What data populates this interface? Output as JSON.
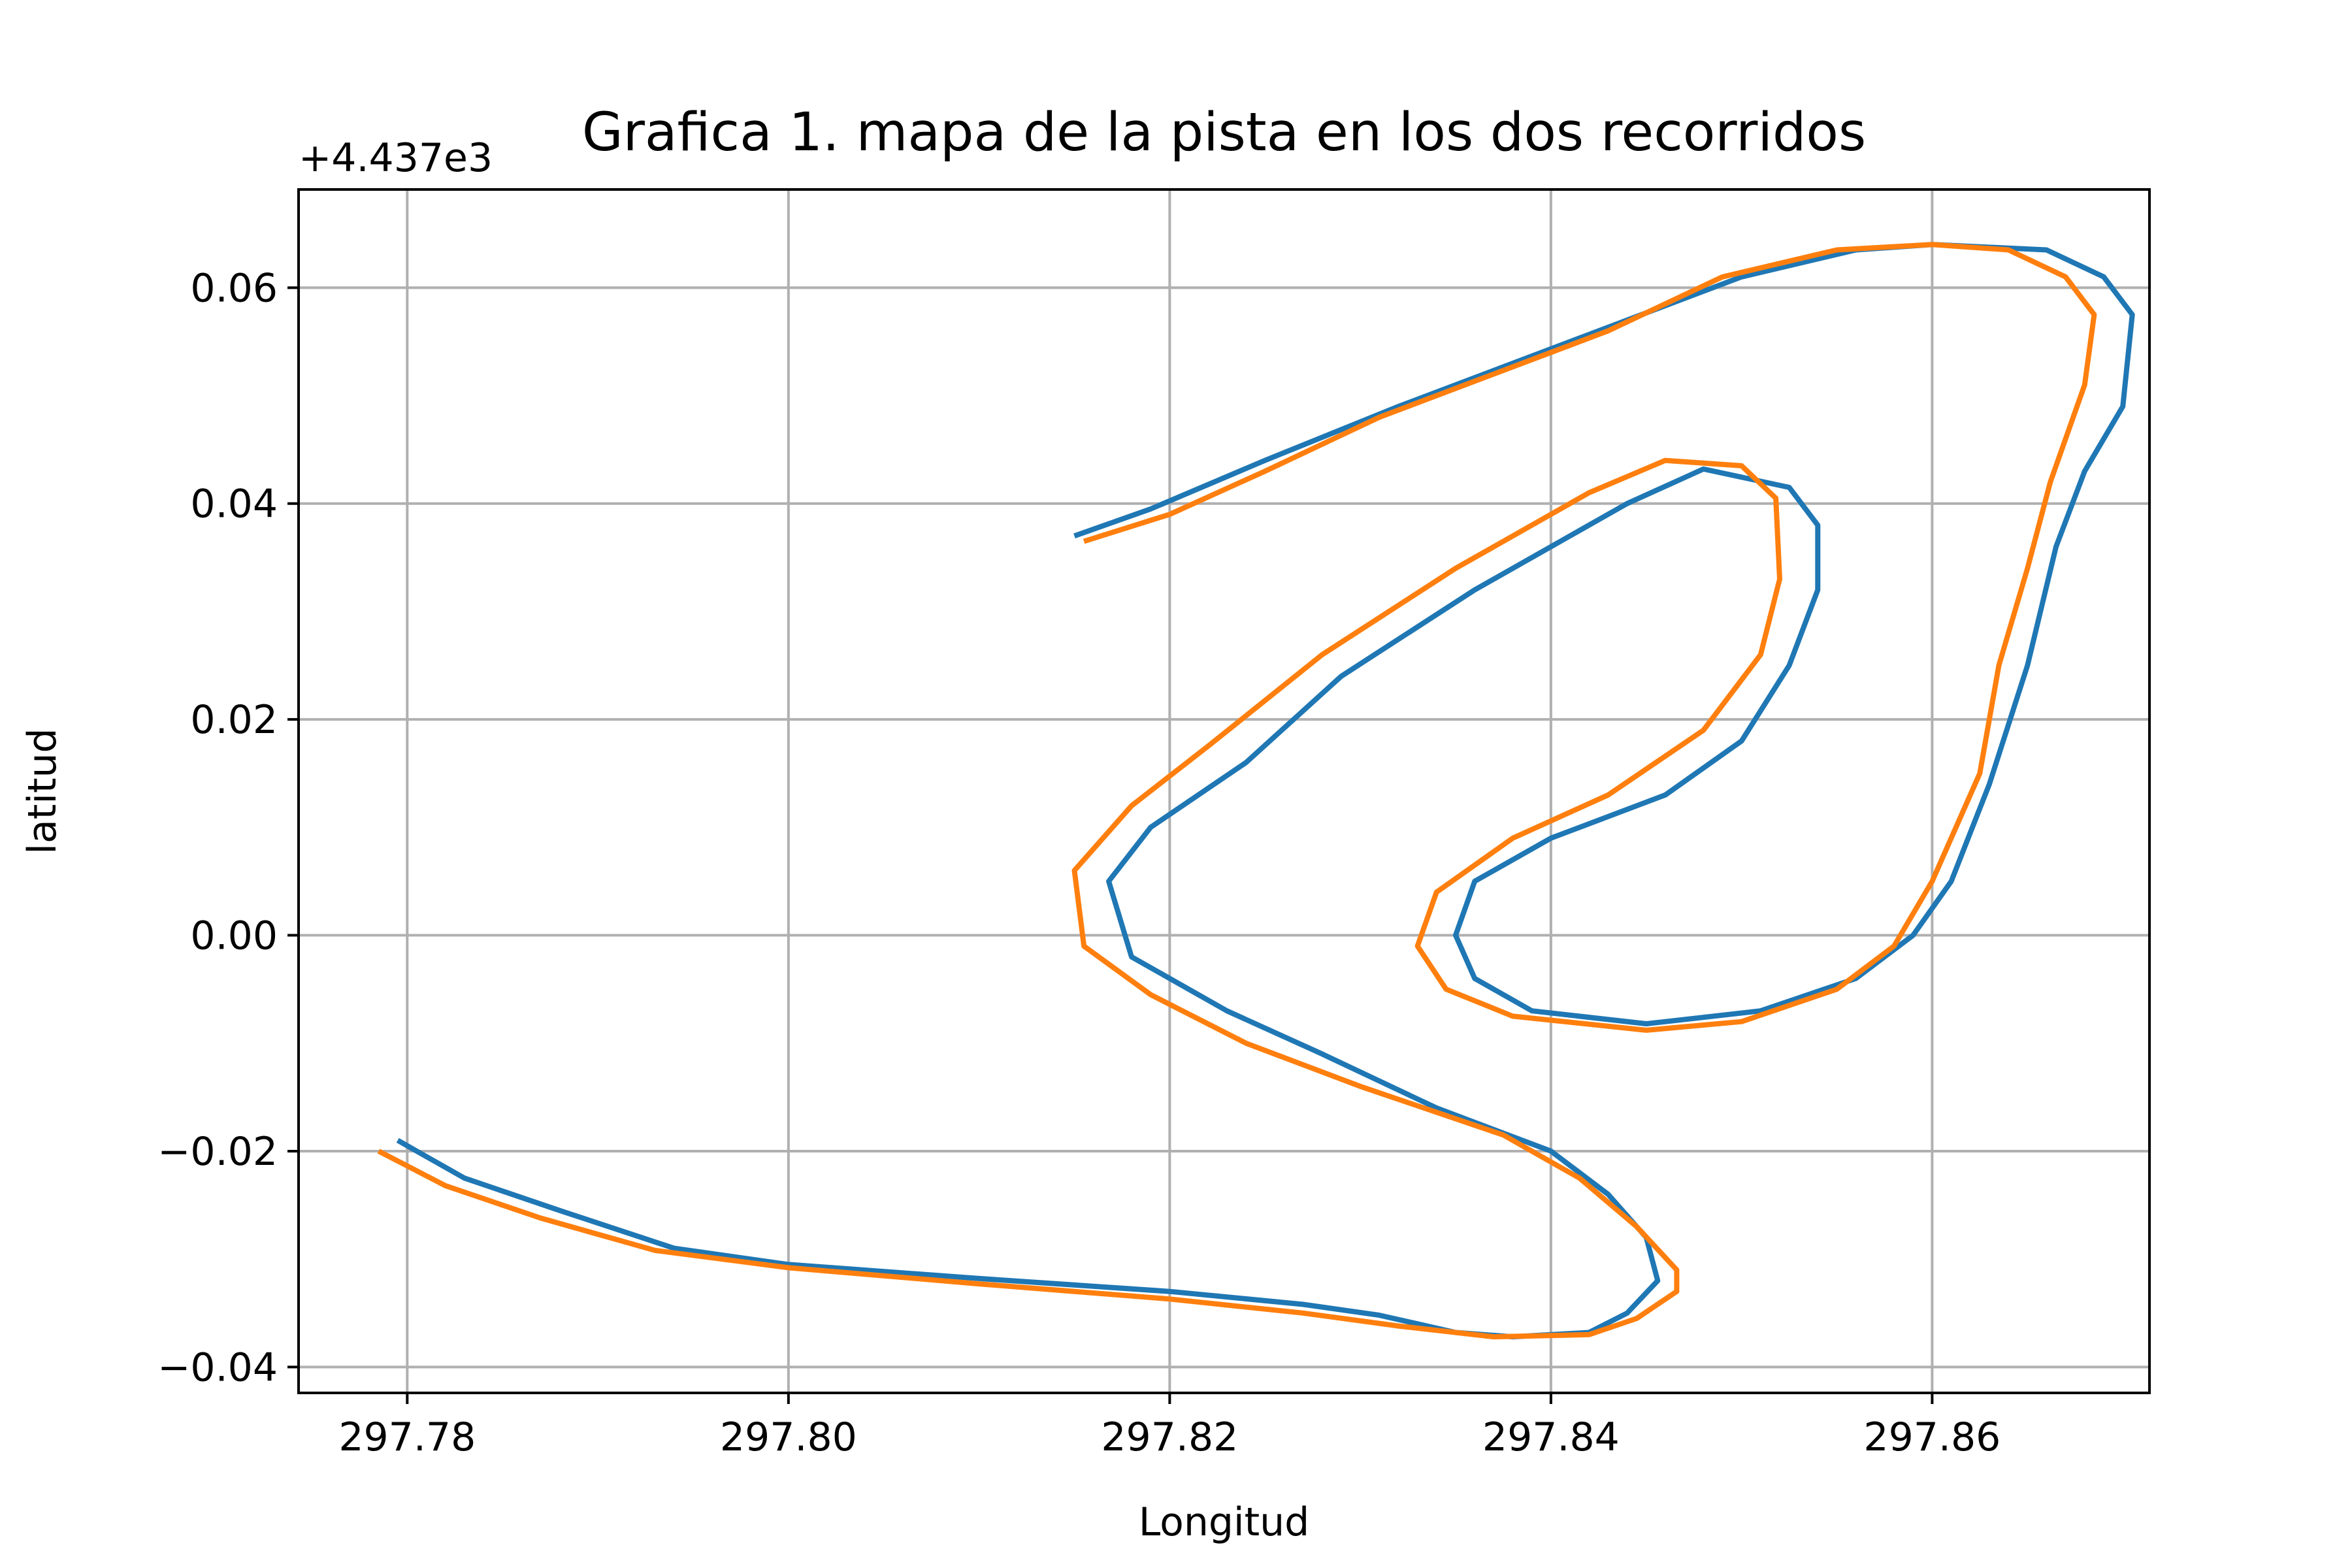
{
  "chart_data": {
    "type": "line",
    "title": "Grafica 1. mapa de la pista en los dos recorridos",
    "xlabel": "Longitud",
    "ylabel": "latitud",
    "y_offset_label": "+4.437e3",
    "xlim": [
      297.7743,
      297.8714
    ],
    "ylim": [
      -0.0424,
      0.0691
    ],
    "xticks": [
      297.78,
      297.8,
      297.82,
      297.84,
      297.86
    ],
    "xtick_labels": [
      "297.78",
      "297.80",
      "297.82",
      "297.84",
      "297.86"
    ],
    "yticks": [
      -0.04,
      -0.02,
      0.0,
      0.02,
      0.04,
      0.06
    ],
    "ytick_labels": [
      "−0.04",
      "−0.02",
      "0.00",
      "0.02",
      "0.04",
      "0.06"
    ],
    "grid": true,
    "series": [
      {
        "color": "#1f77b4",
        "points": [
          [
            297.7795,
            -0.019
          ],
          [
            297.783,
            -0.0225
          ],
          [
            297.788,
            -0.0255
          ],
          [
            297.794,
            -0.029
          ],
          [
            297.8,
            -0.0305
          ],
          [
            297.81,
            -0.0318
          ],
          [
            297.82,
            -0.033
          ],
          [
            297.827,
            -0.0342
          ],
          [
            297.831,
            -0.0352
          ],
          [
            297.835,
            -0.0368
          ],
          [
            297.838,
            -0.0372
          ],
          [
            297.842,
            -0.0368
          ],
          [
            297.844,
            -0.035
          ],
          [
            297.8456,
            -0.032
          ],
          [
            297.845,
            -0.028
          ],
          [
            297.843,
            -0.024
          ],
          [
            297.84,
            -0.02
          ],
          [
            297.834,
            -0.016
          ],
          [
            297.828,
            -0.011
          ],
          [
            297.823,
            -0.007
          ],
          [
            297.818,
            -0.002
          ],
          [
            297.8168,
            0.005
          ],
          [
            297.819,
            0.01
          ],
          [
            297.824,
            0.016
          ],
          [
            297.829,
            0.024
          ],
          [
            297.836,
            0.032
          ],
          [
            297.844,
            0.04
          ],
          [
            297.848,
            0.0432
          ],
          [
            297.8525,
            0.0415
          ],
          [
            297.854,
            0.038
          ],
          [
            297.854,
            0.032
          ],
          [
            297.8525,
            0.025
          ],
          [
            297.85,
            0.018
          ],
          [
            297.846,
            0.013
          ],
          [
            297.84,
            0.009
          ],
          [
            297.836,
            0.005
          ],
          [
            297.835,
            0.0
          ],
          [
            297.836,
            -0.004
          ],
          [
            297.839,
            -0.007
          ],
          [
            297.845,
            -0.0082
          ],
          [
            297.851,
            -0.007
          ],
          [
            297.856,
            -0.004
          ],
          [
            297.859,
            0.0
          ],
          [
            297.861,
            0.005
          ],
          [
            297.863,
            0.014
          ],
          [
            297.865,
            0.025
          ],
          [
            297.8665,
            0.036
          ],
          [
            297.868,
            0.043
          ],
          [
            297.87,
            0.049
          ],
          [
            297.8705,
            0.0575
          ],
          [
            297.869,
            0.061
          ],
          [
            297.866,
            0.0635
          ],
          [
            297.86,
            0.064
          ],
          [
            297.856,
            0.0635
          ],
          [
            297.85,
            0.061
          ],
          [
            297.844,
            0.057
          ],
          [
            297.838,
            0.053
          ],
          [
            297.832,
            0.049
          ],
          [
            297.825,
            0.044
          ],
          [
            297.819,
            0.0395
          ],
          [
            297.815,
            0.037
          ]
        ]
      },
      {
        "color": "#ff7f0e",
        "points": [
          [
            297.7785,
            -0.02
          ],
          [
            297.782,
            -0.0232
          ],
          [
            297.787,
            -0.0262
          ],
          [
            297.793,
            -0.0292
          ],
          [
            297.8,
            -0.0308
          ],
          [
            297.81,
            -0.0323
          ],
          [
            297.82,
            -0.0337
          ],
          [
            297.827,
            -0.035
          ],
          [
            297.832,
            -0.0362
          ],
          [
            297.837,
            -0.0372
          ],
          [
            297.842,
            -0.037
          ],
          [
            297.8445,
            -0.0355
          ],
          [
            297.8466,
            -0.033
          ],
          [
            297.8466,
            -0.031
          ],
          [
            297.8445,
            -0.027
          ],
          [
            297.8415,
            -0.0225
          ],
          [
            297.8375,
            -0.0185
          ],
          [
            297.83,
            -0.014
          ],
          [
            297.824,
            -0.01
          ],
          [
            297.819,
            -0.0055
          ],
          [
            297.8155,
            -0.001
          ],
          [
            297.815,
            0.006
          ],
          [
            297.818,
            0.012
          ],
          [
            297.822,
            0.0175
          ],
          [
            297.828,
            0.026
          ],
          [
            297.835,
            0.034
          ],
          [
            297.842,
            0.041
          ],
          [
            297.846,
            0.044
          ],
          [
            297.85,
            0.0435
          ],
          [
            297.8518,
            0.0405
          ],
          [
            297.852,
            0.033
          ],
          [
            297.851,
            0.026
          ],
          [
            297.848,
            0.019
          ],
          [
            297.843,
            0.013
          ],
          [
            297.838,
            0.009
          ],
          [
            297.834,
            0.004
          ],
          [
            297.833,
            -0.001
          ],
          [
            297.8345,
            -0.005
          ],
          [
            297.838,
            -0.0075
          ],
          [
            297.845,
            -0.0088
          ],
          [
            297.85,
            -0.008
          ],
          [
            297.855,
            -0.005
          ],
          [
            297.858,
            -0.001
          ],
          [
            297.86,
            0.005
          ],
          [
            297.8625,
            0.015
          ],
          [
            297.8635,
            0.025
          ],
          [
            297.865,
            0.034
          ],
          [
            297.8662,
            0.042
          ],
          [
            297.868,
            0.051
          ],
          [
            297.8685,
            0.0575
          ],
          [
            297.867,
            0.061
          ],
          [
            297.864,
            0.0635
          ],
          [
            297.86,
            0.064
          ],
          [
            297.855,
            0.0635
          ],
          [
            297.849,
            0.061
          ],
          [
            297.843,
            0.056
          ],
          [
            297.837,
            0.052
          ],
          [
            297.831,
            0.048
          ],
          [
            297.825,
            0.043
          ],
          [
            297.82,
            0.039
          ],
          [
            297.8155,
            0.0365
          ]
        ]
      }
    ]
  }
}
